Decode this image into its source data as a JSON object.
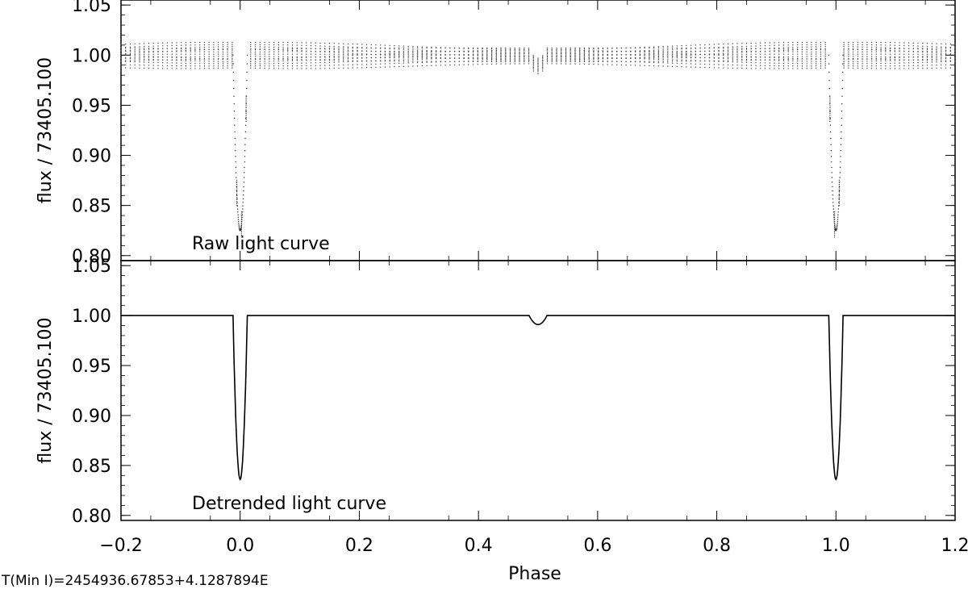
{
  "chart_data": [
    {
      "type": "scatter",
      "ylabel": "flux / 73405.100",
      "annotation": "Raw light curve",
      "xlim": [
        -0.2,
        1.2
      ],
      "ylim": [
        0.795,
        1.055
      ],
      "yticks": [
        "0.80",
        "0.85",
        "0.90",
        "0.95",
        "1.00",
        "1.05"
      ],
      "ytick_values": [
        0.8,
        0.85,
        0.9,
        0.95,
        1.0,
        1.05
      ],
      "series": [
        {
          "baseline_band": [
            0.988,
            1.013
          ],
          "primary_eclipse": {
            "phases": [
              0.0,
              1.0
            ],
            "min_flux": 0.825,
            "half_width": 0.012
          },
          "secondary_eclipse": {
            "phase": 0.5,
            "depth": 0.01,
            "half_width": 0.015
          },
          "points_per_track": 180,
          "track_count": 14
        }
      ]
    },
    {
      "type": "scatter",
      "ylabel": "flux / 73405.100",
      "annotation": "Detrended light curve",
      "xlabel": "Phase",
      "xlim": [
        -0.2,
        1.2
      ],
      "ylim": [
        0.795,
        1.055
      ],
      "xticks": [
        "−0.2",
        "0.0",
        "0.2",
        "0.4",
        "0.6",
        "0.8",
        "1.0",
        "1.2"
      ],
      "xtick_values": [
        -0.2,
        0.0,
        0.2,
        0.4,
        0.6,
        0.8,
        1.0,
        1.2
      ],
      "yticks": [
        "0.80",
        "0.85",
        "0.90",
        "0.95",
        "1.00",
        "1.05"
      ],
      "ytick_values": [
        0.8,
        0.85,
        0.9,
        0.95,
        1.0,
        1.05
      ],
      "series": [
        {
          "baseline_flux": 1.0,
          "primary_eclipse": {
            "phases": [
              0.0,
              1.0
            ],
            "min_flux": 0.836,
            "half_width": 0.012
          },
          "secondary_eclipse": {
            "phase": 0.5,
            "depth": 0.009,
            "half_width": 0.015
          }
        }
      ]
    }
  ],
  "ephemeris_note": "T(Min I)=2454936.67853+4.1287894E"
}
